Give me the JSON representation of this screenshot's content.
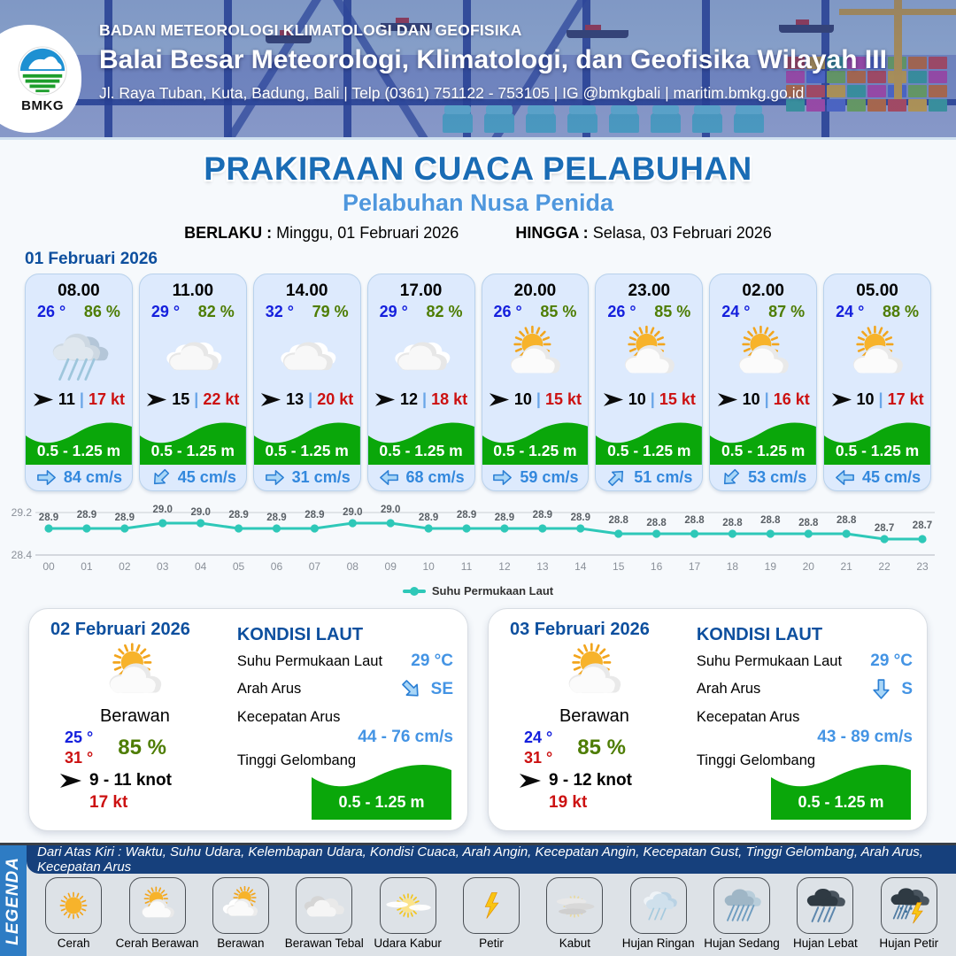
{
  "header": {
    "agency": "BADAN METEOROLOGI KLIMATOLOGI DAN GEOFISIKA",
    "office": "Balai Besar Meteorologi, Klimatologi, dan Geofisika Wilayah III",
    "address": "Jl. Raya Tuban, Kuta, Badung, Bali | Telp (0361) 751122 - 753105 | IG @bmkgbali | maritim.bmkg.go.id",
    "logo_text": "BMKG"
  },
  "title": {
    "main": "PRAKIRAAN CUACA PELABUHAN",
    "subtitle": "Pelabuhan Nusa Penida",
    "berlaku_label": "BERLAKU :",
    "berlaku_value": "Minggu, 01 Februari 2026",
    "hingga_label": "HINGGA :",
    "hingga_value": "Selasa, 03 Februari 2026"
  },
  "hourly": {
    "date_heading": "01 Februari 2026",
    "wave_label_shared": "0.5 - 1.25 m",
    "cards": [
      {
        "time": "08.00",
        "temp": "26 °",
        "humidity": "86 %",
        "icon": "rain",
        "wind_speed": "11",
        "pipe": "|",
        "gust": "17 kt",
        "wave": "0.5 - 1.25 m",
        "current_speed": "84 cm/s",
        "current_dir": "E"
      },
      {
        "time": "11.00",
        "temp": "29 °",
        "humidity": "82 %",
        "icon": "cloudy",
        "wind_speed": "15",
        "pipe": "|",
        "gust": "22 kt",
        "wave": "0.5 - 1.25 m",
        "current_speed": "45 cm/s",
        "current_dir": "SW"
      },
      {
        "time": "14.00",
        "temp": "32 °",
        "humidity": "79 %",
        "icon": "cloudy",
        "wind_speed": "13",
        "pipe": "|",
        "gust": "20 kt",
        "wave": "0.5 - 1.25 m",
        "current_speed": "31 cm/s",
        "current_dir": "E"
      },
      {
        "time": "17.00",
        "temp": "29 °",
        "humidity": "82 %",
        "icon": "cloudy",
        "wind_speed": "12",
        "pipe": "|",
        "gust": "18 kt",
        "wave": "0.5 - 1.25 m",
        "current_speed": "68 cm/s",
        "current_dir": "W"
      },
      {
        "time": "20.00",
        "temp": "26 °",
        "humidity": "85 %",
        "icon": "sun-cloud",
        "wind_speed": "10",
        "pipe": "|",
        "gust": "15 kt",
        "wave": "0.5 - 1.25 m",
        "current_speed": "59 cm/s",
        "current_dir": "E"
      },
      {
        "time": "23.00",
        "temp": "26 °",
        "humidity": "85 %",
        "icon": "sun-cloud",
        "wind_speed": "10",
        "pipe": "|",
        "gust": "15 kt",
        "wave": "0.5 - 1.25 m",
        "current_speed": "51 cm/s",
        "current_dir": "NE"
      },
      {
        "time": "02.00",
        "temp": "24 °",
        "humidity": "87 %",
        "icon": "sun-cloud",
        "wind_speed": "10",
        "pipe": "|",
        "gust": "16 kt",
        "wave": "0.5 - 1.25 m",
        "current_speed": "53 cm/s",
        "current_dir": "SW"
      },
      {
        "time": "05.00",
        "temp": "24 °",
        "humidity": "88 %",
        "icon": "sun-cloud",
        "wind_speed": "10",
        "pipe": "|",
        "gust": "17 kt",
        "wave": "0.5 - 1.25 m",
        "current_speed": "45 cm/s",
        "current_dir": "W"
      }
    ]
  },
  "chart_data": {
    "type": "line",
    "x": [
      "00",
      "01",
      "02",
      "03",
      "04",
      "05",
      "06",
      "07",
      "08",
      "09",
      "10",
      "11",
      "12",
      "13",
      "14",
      "15",
      "16",
      "17",
      "18",
      "19",
      "20",
      "21",
      "22",
      "23"
    ],
    "series": [
      {
        "name": "Suhu Permukaan Laut",
        "values": [
          28.9,
          28.9,
          28.9,
          29.0,
          29.0,
          28.9,
          28.9,
          28.9,
          29.0,
          29.0,
          28.9,
          28.9,
          28.9,
          28.9,
          28.9,
          28.8,
          28.8,
          28.8,
          28.8,
          28.8,
          28.8,
          28.8,
          28.7,
          28.7
        ]
      }
    ],
    "ylim": [
      28.4,
      29.2
    ],
    "ytick_labels": [
      "29.2",
      "28.4"
    ],
    "legend_label": "Suhu Permukaan Laut",
    "color": "#2ec8b8",
    "grid": "top-and-bottom-lines-only",
    "legend_position": "bottom-center",
    "title": "",
    "xlabel": "",
    "ylabel": ""
  },
  "daily": [
    {
      "date": "02 Februari 2026",
      "icon": "sun-cloud",
      "condition": "Berawan",
      "temp_min": "25 °",
      "temp_max": "31 °",
      "humidity": "85 %",
      "wind_range": "9  - 11 knot",
      "gust": "17 kt",
      "sea": {
        "title": "KONDISI LAUT",
        "sst_label": "Suhu Permukaan Laut",
        "sst_value": "29 °C",
        "dir_label": "Arah Arus",
        "dir_value": "SE",
        "dir_compass": "SE",
        "speed_label": "Kecepatan Arus",
        "speed_value": "44 - 76 cm/s",
        "wave_label": "Tinggi Gelombang",
        "wave_value": "0.5 - 1.25 m"
      }
    },
    {
      "date": "03 Februari 2026",
      "icon": "sun-cloud",
      "condition": "Berawan",
      "temp_min": "24 °",
      "temp_max": "31 °",
      "humidity": "85 %",
      "wind_range": "9  - 12 knot",
      "gust": "19 kt",
      "sea": {
        "title": "KONDISI LAUT",
        "sst_label": "Suhu Permukaan Laut",
        "sst_value": "29 °C",
        "dir_label": "Arah Arus",
        "dir_value": "S",
        "dir_compass": "S",
        "speed_label": "Kecepatan Arus",
        "speed_value": "43 - 89 cm/s",
        "wave_label": "Tinggi Gelombang",
        "wave_value": "0.5 - 1.25 m"
      }
    }
  ],
  "legend": {
    "title": "LEGENDA",
    "description": "Dari Atas Kiri : Waktu, Suhu Udara, Kelembapan Udara, Kondisi Cuaca, Arah Angin, Kecepatan Angin, Kecepatan Gust, Tinggi Gelombang, Arah Arus, Kecepatan Arus",
    "items": [
      {
        "icon": "sun",
        "label": "Cerah"
      },
      {
        "icon": "sun-cloud",
        "label": "Cerah Berawan"
      },
      {
        "icon": "cloud-sun",
        "label": "Berawan"
      },
      {
        "icon": "clouds",
        "label": "Berawan Tebal"
      },
      {
        "icon": "hazy-sun",
        "label": "Udara Kabur"
      },
      {
        "icon": "thunder",
        "label": "Petir"
      },
      {
        "icon": "fog",
        "label": "Kabut"
      },
      {
        "icon": "rain-light",
        "label": "Hujan Ringan"
      },
      {
        "icon": "rain-medium",
        "label": "Hujan Sedang"
      },
      {
        "icon": "rain-heavy",
        "label": "Hujan Lebat"
      },
      {
        "icon": "rain-thunder",
        "label": "Hujan Petir"
      }
    ]
  },
  "colors": {
    "heading_blue": "#0d4f9e",
    "title_blue": "#1a6cb5",
    "subtitle_blue": "#4f97dd",
    "temp_blue": "#1520dd",
    "humidity_green": "#4e7d04",
    "gust_red": "#cc1111",
    "wave_green": "#0aa70a",
    "current_blue": "#3388dd",
    "chart_teal": "#2ec8b8"
  }
}
